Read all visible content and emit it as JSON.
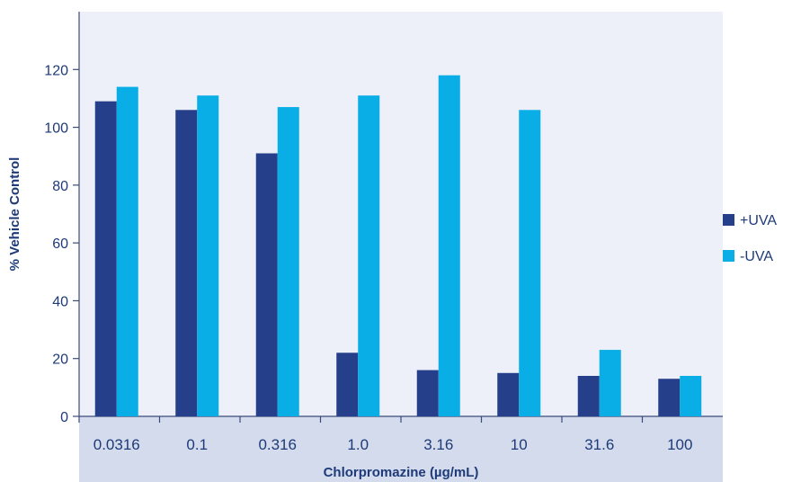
{
  "chart_data": {
    "type": "bar",
    "title": "",
    "xlabel": "Chlorpromazine (µg/mL)",
    "ylabel": "% Vehicle Control",
    "categories": [
      "0.0316",
      "0.1",
      "0.316",
      "1.0",
      "3.16",
      "10",
      "31.6",
      "100"
    ],
    "series": [
      {
        "name": "+UVA",
        "color": "#263f8a",
        "values": [
          109,
          106,
          91,
          22,
          16,
          15,
          14,
          13
        ]
      },
      {
        "name": "-UVA",
        "color": "#0aaee6",
        "values": [
          114,
          111,
          107,
          111,
          118,
          106,
          23,
          14
        ]
      }
    ],
    "ylim": [
      0,
      140
    ],
    "yticks": [
      0,
      20,
      40,
      60,
      80,
      100,
      120
    ],
    "grid": false,
    "legend_position": "right",
    "colors": {
      "plot_background": "#edf0f8",
      "axis_band": "#d3dbed",
      "text": "#1e3a78"
    }
  }
}
